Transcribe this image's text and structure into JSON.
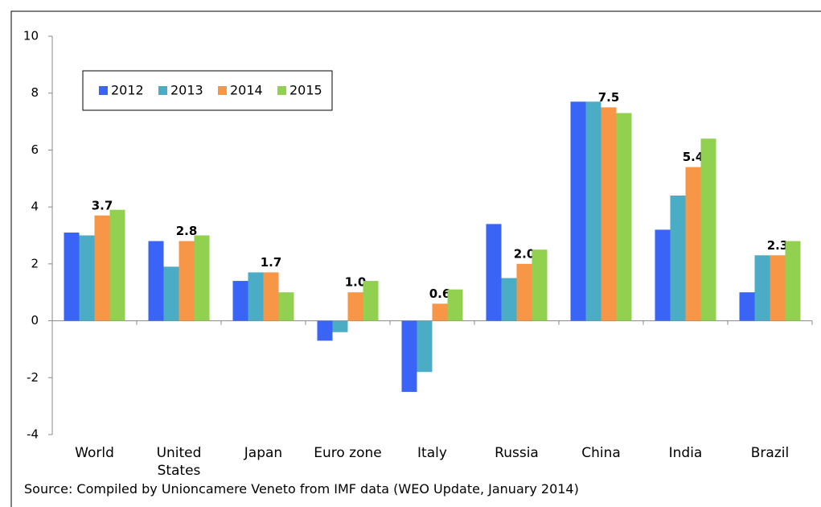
{
  "chart_data": {
    "type": "bar",
    "categories": [
      "World",
      "United States",
      "Japan",
      "Euro zone",
      "Italy",
      "Russia",
      "China",
      "India",
      "Brazil"
    ],
    "series": [
      {
        "name": "2012",
        "color": "#3a64f5",
        "values": [
          3.1,
          2.8,
          1.4,
          -0.7,
          -2.5,
          3.4,
          7.7,
          3.2,
          1.0
        ]
      },
      {
        "name": "2013",
        "color": "#4bacc6",
        "values": [
          3.0,
          1.9,
          1.7,
          -0.4,
          -1.8,
          1.5,
          7.7,
          4.4,
          2.3
        ]
      },
      {
        "name": "2014",
        "color": "#f79646",
        "values": [
          3.7,
          2.8,
          1.7,
          1.0,
          0.6,
          2.0,
          7.5,
          5.4,
          2.3
        ],
        "value_labels": [
          "3.7",
          "2.8",
          "1.7",
          "1.0",
          "0.6",
          "2.0",
          "7.5",
          "5.4",
          "2.3"
        ]
      },
      {
        "name": "2015",
        "color": "#92d050",
        "values": [
          3.9,
          3.0,
          1.0,
          1.4,
          1.1,
          2.5,
          7.3,
          6.4,
          2.8
        ]
      }
    ],
    "ylim": [
      -4,
      10
    ],
    "yticks": [
      -4,
      -2,
      0,
      2,
      4,
      6,
      8,
      10
    ],
    "grid": false,
    "legend": "top-left",
    "source": "Source: Compiled by Unioncamere Veneto from IMF data (WEO Update, January 2014)"
  }
}
